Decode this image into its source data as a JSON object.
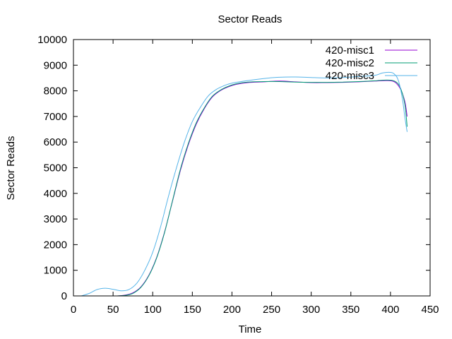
{
  "chart_data": {
    "type": "line",
    "title": "Sector Reads",
    "xlabel": "Time",
    "ylabel": "Sector Reads",
    "xlim": [
      0,
      450
    ],
    "ylim": [
      0,
      10000
    ],
    "xticks": [
      0,
      50,
      100,
      150,
      200,
      250,
      300,
      350,
      400,
      450
    ],
    "yticks": [
      0,
      1000,
      2000,
      3000,
      4000,
      5000,
      6000,
      7000,
      8000,
      9000,
      10000
    ],
    "grid": false,
    "legend_position": "top-right",
    "series": [
      {
        "name": "420-misc1",
        "color": "#9400d3",
        "x": [
          55,
          65,
          75,
          85,
          95,
          105,
          115,
          125,
          135,
          145,
          155,
          165,
          175,
          185,
          195,
          205,
          220,
          240,
          260,
          280,
          300,
          320,
          340,
          360,
          380,
          395,
          405,
          412,
          418,
          421
        ],
        "y": [
          0,
          30,
          120,
          350,
          800,
          1500,
          2500,
          3700,
          4900,
          5900,
          6700,
          7300,
          7750,
          8000,
          8150,
          8250,
          8320,
          8350,
          8380,
          8350,
          8320,
          8320,
          8330,
          8350,
          8380,
          8400,
          8350,
          8100,
          7600,
          7000
        ]
      },
      {
        "name": "420-misc2",
        "color": "#009e73",
        "x": [
          55,
          65,
          75,
          85,
          95,
          105,
          115,
          125,
          135,
          145,
          155,
          165,
          175,
          185,
          195,
          205,
          220,
          240,
          260,
          280,
          300,
          320,
          340,
          360,
          380,
          395,
          405,
          412,
          418,
          421
        ],
        "y": [
          0,
          20,
          100,
          330,
          780,
          1480,
          2480,
          3720,
          4950,
          5950,
          6750,
          7330,
          7780,
          8020,
          8170,
          8270,
          8340,
          8360,
          8360,
          8340,
          8330,
          8330,
          8340,
          8360,
          8390,
          8420,
          8380,
          8150,
          7500,
          6600
        ]
      },
      {
        "name": "420-misc3",
        "color": "#56b4e9",
        "x": [
          10,
          20,
          30,
          40,
          50,
          60,
          70,
          80,
          90,
          100,
          110,
          120,
          130,
          140,
          150,
          160,
          170,
          180,
          190,
          200,
          220,
          240,
          260,
          280,
          300,
          320,
          340,
          360,
          380,
          390,
          400,
          405,
          410,
          415,
          418,
          421
        ],
        "y": [
          0,
          100,
          250,
          300,
          260,
          200,
          250,
          500,
          1000,
          1700,
          2700,
          3900,
          5000,
          6000,
          6800,
          7350,
          7800,
          8050,
          8200,
          8300,
          8400,
          8480,
          8530,
          8540,
          8520,
          8500,
          8520,
          8560,
          8600,
          8700,
          8720,
          8650,
          8400,
          7700,
          7000,
          6400
        ]
      }
    ]
  }
}
